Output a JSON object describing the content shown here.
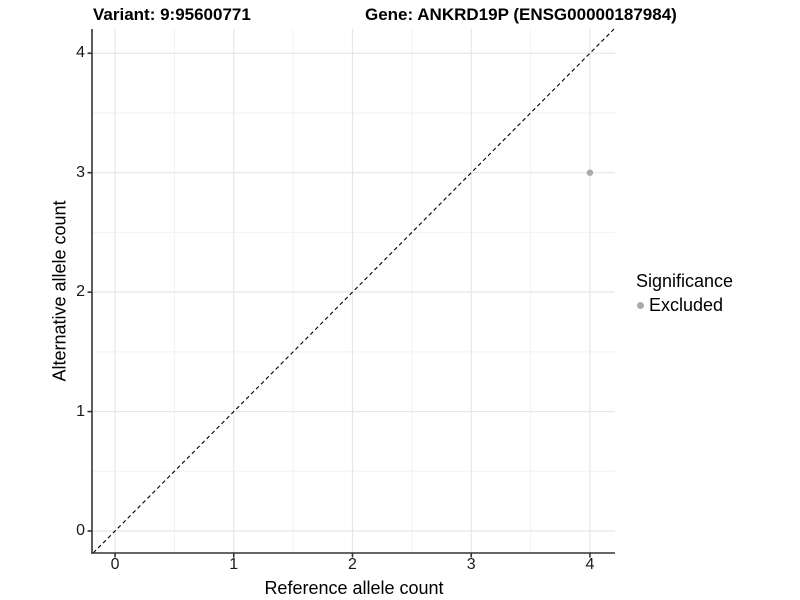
{
  "titles": {
    "variant": "Variant: 9:95600771",
    "gene": "Gene: ANKRD19P (ENSG00000187984)"
  },
  "axes": {
    "x": {
      "label": "Reference allele count",
      "tick_labels": [
        "0",
        "1",
        "2",
        "3",
        "4"
      ]
    },
    "y": {
      "label": "Alternative allele count",
      "tick_labels": [
        "0",
        "1",
        "2",
        "3",
        "4"
      ]
    }
  },
  "legend": {
    "title": "Significance",
    "items": [
      {
        "label": "Excluded",
        "color": "#ababab"
      }
    ]
  },
  "colors": {
    "background": "#ffffff",
    "grid_major": "#e6e6e6",
    "grid_minor": "#f2f2f2",
    "axis_line": "#333333",
    "identity_line": "#000000",
    "point": "#ababab",
    "tick_text": "#1a1a1a",
    "title_text": "#000000"
  },
  "chart_data": {
    "type": "scatter",
    "title": "Variant: 9:95600771 | Gene: ANKRD19P (ENSG00000187984)",
    "xlabel": "Reference allele count",
    "ylabel": "Alternative allele count",
    "xlim": [
      -0.194,
      4.211
    ],
    "ylim": [
      -0.184,
      4.203
    ],
    "x_ticks": [
      0,
      1,
      2,
      3,
      4
    ],
    "y_ticks": [
      0,
      1,
      2,
      3,
      4
    ],
    "x_minor_ticks": [
      0.5,
      1.5,
      2.5,
      3.5
    ],
    "y_minor_ticks": [
      0.5,
      1.5,
      2.5,
      3.5
    ],
    "grid": true,
    "legend_position": "right",
    "series": [
      {
        "name": "Excluded",
        "color": "#ababab",
        "points": [
          [
            4,
            3
          ]
        ]
      }
    ],
    "reference_line": {
      "type": "identity_y_equals_x",
      "style": "dashed",
      "color": "#000000"
    }
  }
}
